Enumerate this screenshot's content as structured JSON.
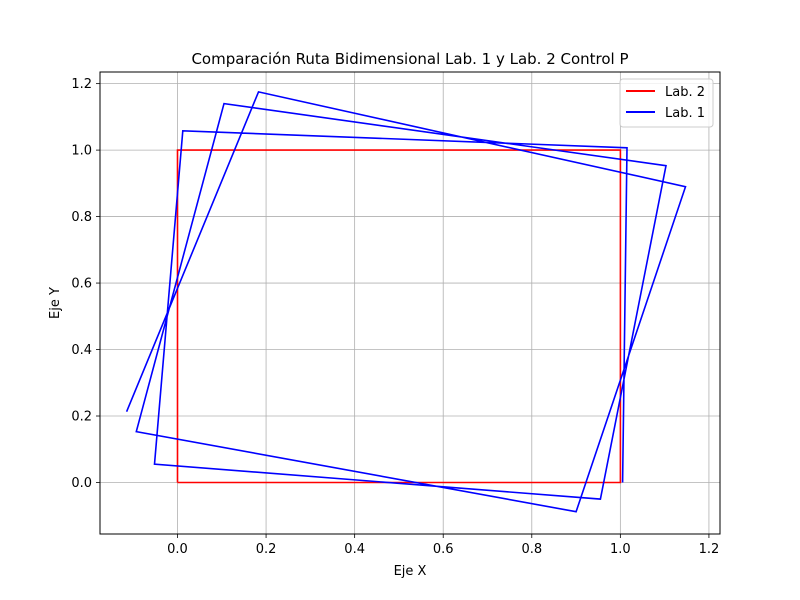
{
  "chart_data": {
    "type": "line",
    "title": "Comparación Ruta Bidimensional Lab. 1 y Lab. 2 Control P",
    "xlabel": "Eje X",
    "ylabel": "Eje Y",
    "xlim": [
      -0.175,
      1.225
    ],
    "ylim": [
      -0.155,
      1.235
    ],
    "xticks": [
      0.0,
      0.2,
      0.4,
      0.6,
      0.8,
      1.0,
      1.2
    ],
    "xtick_labels": [
      "0.0",
      "0.2",
      "0.4",
      "0.6",
      "0.8",
      "1.0",
      "1.2"
    ],
    "yticks": [
      0.0,
      0.2,
      0.4,
      0.6,
      0.8,
      1.0,
      1.2
    ],
    "ytick_labels": [
      "0.0",
      "0.2",
      "0.4",
      "0.6",
      "0.8",
      "1.0",
      "1.2"
    ],
    "grid": true,
    "legend_position": "top-right",
    "series": [
      {
        "name": "Lab. 2",
        "color": "#ff0000",
        "x": [
          0.0,
          0.0,
          1.0,
          1.0,
          0.0
        ],
        "y": [
          0.0,
          1.0,
          1.0,
          0.0,
          0.0
        ]
      },
      {
        "name": "Lab. 1",
        "color": "#0000ff",
        "x": [
          1.005,
          1.015,
          0.012,
          -0.052,
          0.955,
          1.103,
          0.105,
          -0.093,
          0.9,
          1.147,
          0.183,
          -0.115
        ],
        "y": [
          0.0,
          1.007,
          1.058,
          0.055,
          -0.05,
          0.953,
          1.14,
          0.153,
          -0.088,
          0.89,
          1.175,
          0.213
        ]
      }
    ]
  }
}
